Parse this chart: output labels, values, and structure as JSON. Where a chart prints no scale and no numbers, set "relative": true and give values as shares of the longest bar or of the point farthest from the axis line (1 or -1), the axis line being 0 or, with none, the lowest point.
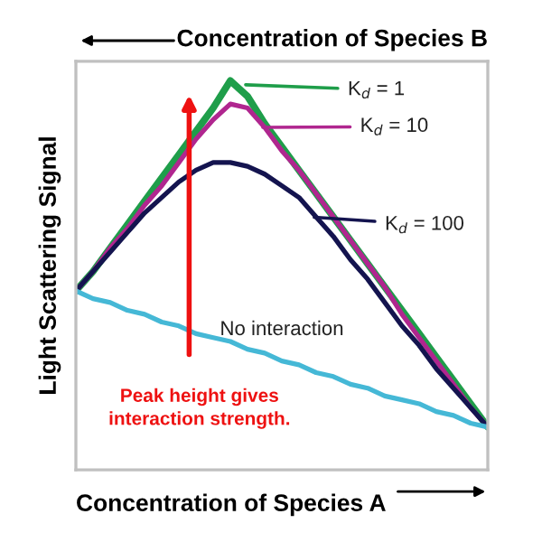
{
  "chart_data": {
    "type": "line",
    "relative": true,
    "xlabel": "Concentration of Species A",
    "x2label": "Concentration of Species B",
    "ylabel": "Light Scattering Signal",
    "categories": [
      null,
      null,
      null,
      null,
      null,
      null,
      null,
      null,
      null,
      null,
      null,
      null,
      null,
      null,
      null,
      null,
      null,
      null,
      null,
      null,
      null,
      null,
      null,
      null,
      null
    ],
    "series": [
      {
        "name": "K$_{d}$ = 1",
        "color": "#1f9e4a",
        "values": [
          0.46,
          0.51,
          0.57,
          0.63,
          0.69,
          0.75,
          0.81,
          0.87,
          0.93,
          1,
          0.96,
          0.89,
          0.83,
          0.77,
          0.71,
          0.65,
          0.59,
          0.53,
          0.47,
          0.41,
          0.35,
          0.29,
          0.23,
          0.17,
          0.11
        ]
      },
      {
        "name": "K$_{d}$ = 10",
        "color": "#b0268f",
        "values": [
          0.46,
          0.51,
          0.57,
          0.62,
          0.68,
          0.73,
          0.79,
          0.85,
          0.9,
          0.94,
          0.93,
          0.88,
          0.82,
          0.77,
          0.71,
          0.65,
          0.59,
          0.53,
          0.47,
          0.4,
          0.34,
          0.28,
          0.22,
          0.16,
          0.11
        ]
      },
      {
        "name": "K$_{d}$ = 100",
        "color": "#14144f",
        "values": [
          0.46,
          0.51,
          0.56,
          0.61,
          0.66,
          0.7,
          0.74,
          0.77,
          0.79,
          0.79,
          0.78,
          0.76,
          0.73,
          0.7,
          0.65,
          0.6,
          0.54,
          0.49,
          0.43,
          0.37,
          0.32,
          0.26,
          0.21,
          0.16,
          0.11
        ]
      },
      {
        "name": "No interaction",
        "color": "#45b8d6",
        "values": [
          0.46,
          0.44,
          0.43,
          0.41,
          0.4,
          0.38,
          0.37,
          0.35,
          0.34,
          0.33,
          0.31,
          0.3,
          0.28,
          0.27,
          0.25,
          0.24,
          0.22,
          0.21,
          0.19,
          0.18,
          0.17,
          0.15,
          0.14,
          0.12,
          0.11
        ]
      }
    ],
    "annotations": [
      "Peak height gives\ninteraction strength."
    ],
    "legend": "top right",
    "grid": false,
    "marker": "none",
    "line_style": "solid"
  }
}
